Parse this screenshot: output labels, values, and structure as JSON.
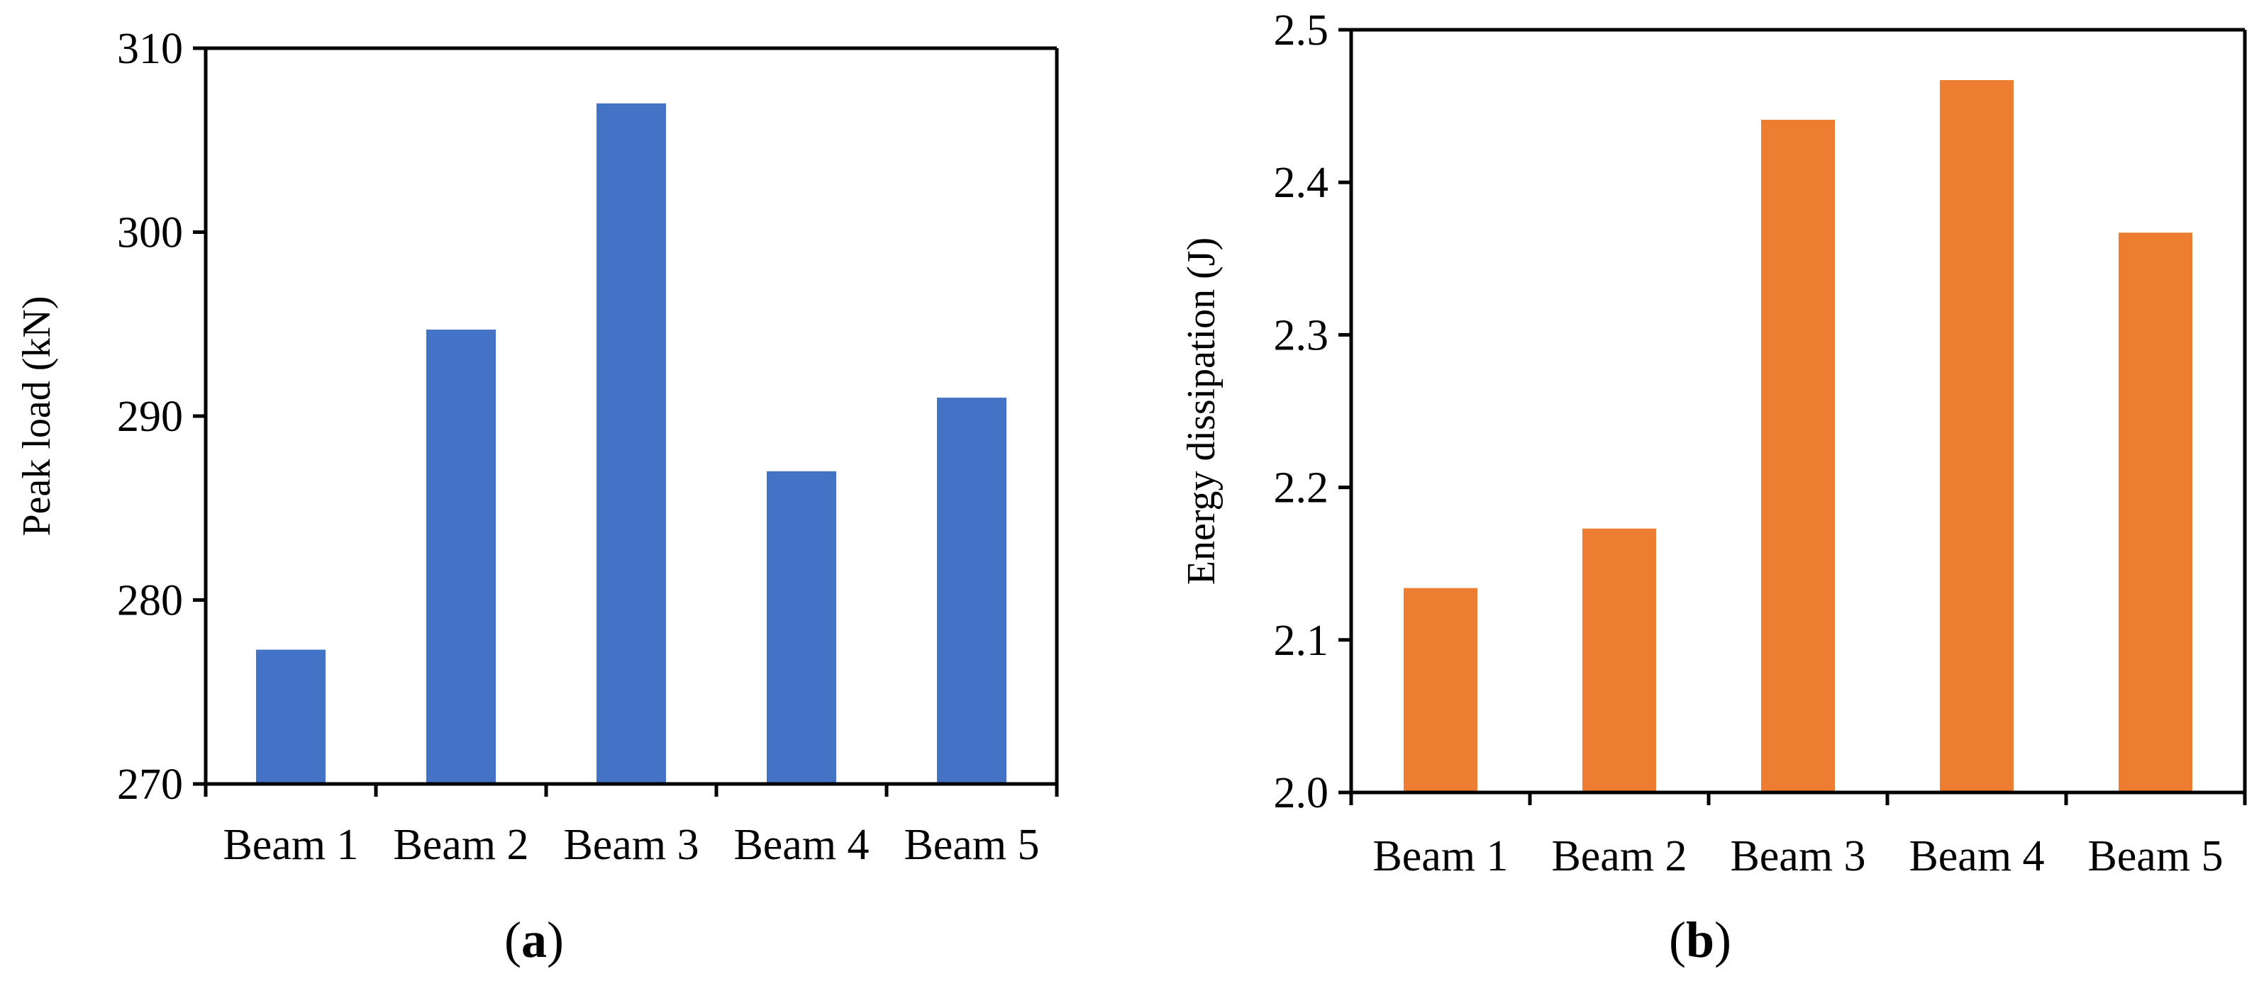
{
  "chart_data": [
    {
      "type": "bar",
      "panel": "a",
      "panel_label": "a",
      "categories": [
        "Beam 1",
        "Beam 2",
        "Beam 3",
        "Beam 4",
        "Beam 5"
      ],
      "values": [
        277.3,
        294.7,
        307.0,
        287.0,
        291.0
      ],
      "title": "",
      "xlabel": "",
      "ylabel": "Peak load (kN)",
      "ylim": [
        270,
        310
      ],
      "yticks": [
        270,
        280,
        290,
        300,
        310
      ],
      "ytick_labels": [
        "270",
        "280",
        "290",
        "300",
        "310"
      ],
      "color": "#4472C4",
      "grid": false,
      "legend": "none"
    },
    {
      "type": "bar",
      "panel": "b",
      "panel_label": "b",
      "categories": [
        "Beam 1",
        "Beam 2",
        "Beam 3",
        "Beam 4",
        "Beam 5"
      ],
      "values": [
        2.134,
        2.173,
        2.441,
        2.467,
        2.367
      ],
      "title": "",
      "xlabel": "",
      "ylabel": "Energy dissipation (J)",
      "ylim": [
        2.0,
        2.5
      ],
      "yticks": [
        2.0,
        2.1,
        2.2,
        2.3,
        2.4,
        2.5
      ],
      "ytick_labels": [
        "2.0",
        "2.1",
        "2.2",
        "2.3",
        "2.4",
        "2.5"
      ],
      "color": "#ED7D31",
      "grid": false,
      "legend": "none"
    }
  ]
}
